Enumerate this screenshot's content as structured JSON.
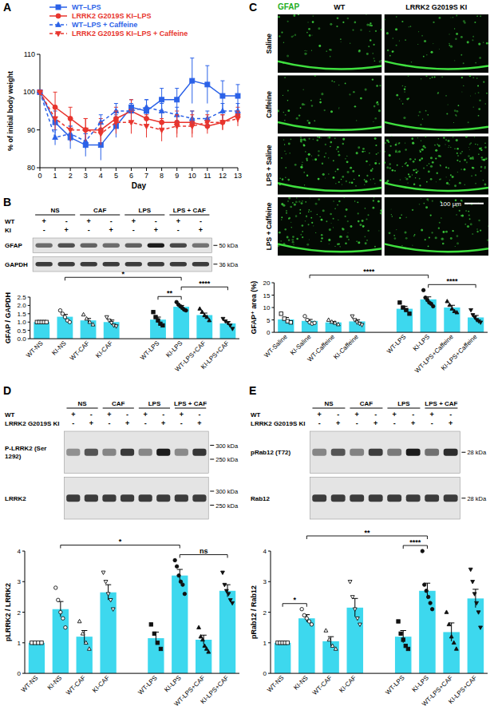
{
  "chart_data": [
    {
      "type": "line",
      "x_label": "Day",
      "y_label": "% of initial body weight",
      "x": [
        0,
        1,
        2,
        3,
        4,
        5,
        6,
        7,
        8,
        9,
        10,
        11,
        12,
        13
      ],
      "xlim": [
        0,
        13
      ],
      "xticks": [
        0,
        1,
        2,
        3,
        4,
        5,
        6,
        7,
        8,
        9,
        10,
        11,
        12,
        13
      ],
      "ylim": [
        80,
        110
      ],
      "yticks": [
        80,
        90,
        100,
        110
      ],
      "legend": "top",
      "series": [
        {
          "name": "WT–LPS",
          "color": "#2b62e8",
          "marker": "square",
          "line_style": "solid",
          "values": [
            100,
            92,
            88,
            86,
            86,
            91,
            96,
            95,
            98,
            98,
            103,
            102,
            99,
            99
          ],
          "errors": [
            0,
            3,
            3,
            3,
            4,
            3,
            2,
            3,
            3,
            3,
            6,
            5,
            4,
            3
          ]
        },
        {
          "name": "LRRK2 G2019S KI–LPS",
          "color": "#e8352e",
          "marker": "circle",
          "line_style": "solid",
          "values": [
            100,
            96,
            93,
            90,
            90,
            93,
            95,
            93,
            92,
            92,
            92,
            91,
            92,
            94
          ],
          "errors": [
            0,
            4,
            3,
            3,
            3,
            3,
            3,
            3,
            3,
            3,
            3,
            2,
            2,
            2
          ]
        },
        {
          "name": "WT–LPS + Caffeine",
          "color": "#2b62e8",
          "marker": "triangle",
          "line_style": "dashed",
          "values": [
            100,
            88,
            89,
            87,
            92,
            95,
            95,
            96,
            95,
            94,
            93,
            93,
            95,
            95
          ],
          "errors": [
            0,
            2,
            2,
            2,
            2,
            2,
            2,
            2,
            2,
            2,
            2,
            2,
            2,
            2
          ]
        },
        {
          "name": "LRRK2 G2019S KI–LPS + Caffeine",
          "color": "#e8352e",
          "marker": "triangle-down",
          "line_style": "dashed",
          "values": [
            100,
            93,
            90,
            90,
            89,
            92,
            92,
            91,
            90,
            91,
            91,
            92,
            92,
            93
          ],
          "errors": [
            0,
            3,
            3,
            3,
            3,
            3,
            3,
            3,
            3,
            3,
            3,
            2,
            2,
            2
          ]
        }
      ]
    },
    {
      "type": "bar",
      "y_label": "GFAP / GAPDH",
      "color": "#3dd8ee",
      "categories": [
        "WT-NS",
        "KI-NS",
        "WT-CAF",
        "KI-CAF",
        "WT-LPS",
        "KI-LPS",
        "WT-LPS+CAF",
        "KI-LPS+CAF"
      ],
      "values": [
        1.0,
        1.32,
        1.1,
        1.0,
        1.15,
        1.92,
        1.42,
        0.92
      ],
      "errors": [
        0.02,
        0.14,
        0.12,
        0.12,
        0.15,
        0.08,
        0.12,
        0.1
      ],
      "points": [
        [
          1.0,
          1.0,
          1.0,
          1.0,
          1.0
        ],
        [
          1.7,
          1.5,
          1.3,
          1.1,
          1.0
        ],
        [
          1.45,
          1.2,
          1.0,
          0.85
        ],
        [
          1.3,
          1.1,
          0.95,
          0.8,
          0.75
        ],
        [
          1.6,
          1.3,
          1.1,
          0.9,
          0.8
        ],
        [
          2.2,
          2.05,
          1.95,
          1.85,
          1.75,
          1.7
        ],
        [
          1.8,
          1.6,
          1.4,
          1.3,
          1.1
        ],
        [
          1.2,
          1.05,
          0.95,
          0.8,
          0.6
        ]
      ],
      "ylim": [
        0,
        2.5
      ],
      "yticks": [
        {
          "value": 0,
          "label": "0.0"
        },
        {
          "value": 0.5,
          "label": "0.5"
        },
        {
          "value": 1,
          "label": "1.0"
        },
        {
          "value": 1.5,
          "label": "1.5"
        },
        {
          "value": 2,
          "label": "2.0"
        },
        {
          "value": 2.5,
          "label": "2.5"
        }
      ],
      "annotations": [
        {
          "text": "*",
          "between": [
            "KI-NS",
            "KI-LPS"
          ]
        },
        {
          "text": "**",
          "between": [
            "WT-LPS",
            "KI-LPS"
          ]
        },
        {
          "text": "****",
          "between": [
            "KI-LPS",
            "KI-LPS+CAF"
          ]
        }
      ]
    },
    {
      "type": "bar",
      "y_label": "GFAP⁺ area (%)",
      "color": "#3dd8ee",
      "categories": [
        "WT-Saline",
        "KI-Saline",
        "WT-Caffeine",
        "KI-Caffeine",
        "WT-LPS",
        "KI-LPS",
        "WT-LPS+Caffeine",
        "KI-LPS+Caffeine"
      ],
      "values": [
        5.2,
        4.6,
        4.0,
        4.4,
        9.5,
        13.3,
        10.0,
        6.0
      ],
      "errors": [
        0.8,
        0.6,
        0.4,
        0.7,
        1.0,
        1.0,
        0.9,
        0.8
      ],
      "points": [
        [
          7.5,
          5.5,
          4.5,
          4.0
        ],
        [
          6.5,
          5.0,
          4.0,
          3.5,
          3.8
        ],
        [
          5.0,
          4.2,
          3.8,
          3.2
        ],
        [
          6.5,
          5.0,
          4.0,
          3.5,
          3.0
        ],
        [
          12.0,
          10.0,
          9.0,
          7.5
        ],
        [
          17.0,
          14.0,
          13.0,
          12.0,
          11.5,
          10.5
        ],
        [
          12.5,
          11.0,
          9.5,
          8.5,
          8.0
        ],
        [
          9.0,
          7.0,
          6.0,
          5.0,
          4.5,
          4.0
        ]
      ],
      "ylim": [
        0,
        20
      ],
      "yticks": [
        0,
        5,
        10,
        15,
        20
      ],
      "annotations": [
        {
          "text": "****",
          "between": [
            "KI-Saline",
            "KI-LPS"
          ]
        },
        {
          "text": "****",
          "between": [
            "KI-LPS",
            "KI-LPS+Caffeine"
          ]
        }
      ]
    },
    {
      "type": "bar",
      "y_label": "pLRRK2 / LRRK2",
      "color": "#3dd8ee",
      "categories": [
        "WT-NS",
        "KI-NS",
        "WT-CAF",
        "KI-CAF",
        "WT-LPS",
        "KI-LPS",
        "WT-LPS+CAF",
        "KI-LPS+CAF"
      ],
      "values": [
        1.0,
        2.1,
        1.2,
        2.65,
        1.15,
        3.2,
        1.1,
        2.7
      ],
      "errors": [
        0.02,
        0.25,
        0.2,
        0.25,
        0.2,
        0.2,
        0.15,
        0.2
      ],
      "points": [
        [
          1,
          1,
          1,
          1
        ],
        [
          2.8,
          2.4,
          2.0,
          1.8,
          1.5
        ],
        [
          1.7,
          1.3,
          1.0,
          0.8
        ],
        [
          3.3,
          3.0,
          2.6,
          2.4,
          2.1
        ],
        [
          1.6,
          1.3,
          1.0,
          0.8
        ],
        [
          3.7,
          3.5,
          3.2,
          3.0,
          2.9,
          2.6
        ],
        [
          1.5,
          1.2,
          1.1,
          0.9,
          0.8,
          0.7
        ],
        [
          3.3,
          2.9,
          2.7,
          2.6,
          2.4,
          2.3
        ]
      ],
      "ylim": [
        0,
        4
      ],
      "yticks": [
        0,
        1,
        2,
        3,
        4
      ],
      "annotations": [
        {
          "text": "*",
          "between": [
            "KI-NS",
            "KI-LPS"
          ]
        },
        {
          "text": "ns",
          "between": [
            "KI-LPS",
            "KI-LPS+CAF"
          ]
        }
      ]
    },
    {
      "type": "bar",
      "y_label": "pRab12 / Rab12",
      "color": "#3dd8ee",
      "categories": [
        "WT-NS",
        "KI-NS",
        "WT-CAF",
        "KI-CAF",
        "WT-LPS",
        "KI-LPS",
        "WT-LPS+CAF",
        "KI-LPS+CAF"
      ],
      "values": [
        1.0,
        1.8,
        1.05,
        2.15,
        1.2,
        2.7,
        1.35,
        2.45
      ],
      "errors": [
        0.02,
        0.12,
        0.15,
        0.3,
        0.2,
        0.25,
        0.3,
        0.3
      ],
      "points": [
        [
          1,
          1,
          1,
          1,
          1
        ],
        [
          2.1,
          1.9,
          1.8,
          1.7,
          1.6
        ],
        [
          1.4,
          1.1,
          0.9,
          0.8
        ],
        [
          3.0,
          2.5,
          2.1,
          1.8,
          1.6
        ],
        [
          1.7,
          1.3,
          1.1,
          0.9,
          0.8
        ],
        [
          4.0,
          2.9,
          2.7,
          2.5,
          2.3,
          2.1
        ],
        [
          2.0,
          1.6,
          1.2,
          1.0,
          0.8
        ],
        [
          3.4,
          3.0,
          2.6,
          2.3,
          2.0,
          1.5
        ]
      ],
      "ylim": [
        0,
        4
      ],
      "yticks": [
        0,
        1,
        2,
        3,
        4
      ],
      "annotations": [
        {
          "text": "*",
          "between": [
            "WT-NS",
            "KI-NS"
          ]
        },
        {
          "text": "**",
          "between": [
            "KI-NS",
            "KI-LPS"
          ]
        },
        {
          "text": "****",
          "between": [
            "WT-LPS",
            "KI-LPS"
          ]
        }
      ]
    }
  ],
  "figure": {
    "panel_labels": [
      "A",
      "B",
      "C",
      "D",
      "E"
    ],
    "blots": [
      {
        "groups": [
          "NS",
          "CAF",
          "LPS",
          "LPS + CAF"
        ],
        "rows": [
          {
            "label": "WT",
            "signs": [
              "+",
              "-",
              "+",
              "-",
              "+",
              "-",
              "+",
              "-"
            ]
          },
          {
            "label": "KI",
            "signs": [
              "-",
              "+",
              "-",
              "+",
              "-",
              "+",
              "-",
              "+"
            ]
          }
        ],
        "bands": [
          {
            "label": "GFAP",
            "sizes": [
              "50 kDa"
            ]
          },
          {
            "label": "GAPDH",
            "sizes": [
              "36 kDa"
            ]
          }
        ]
      },
      {
        "groups": [
          "NS",
          "CAF",
          "LPS",
          "LPS + CAF"
        ],
        "rows": [
          {
            "label": "WT",
            "signs": [
              "+",
              "-",
              "+",
              "-",
              "+",
              "-",
              "+",
              "-"
            ]
          },
          {
            "label": "LRRK2 G2019S KI",
            "signs": [
              "-",
              "+",
              "-",
              "+",
              "-",
              "+",
              "-",
              "+"
            ]
          }
        ],
        "bands": [
          {
            "label": "P-LRRK2 (Ser 1292)",
            "sizes": [
              "300 kDa",
              "250 kDa"
            ]
          },
          {
            "label": "LRRK2",
            "sizes": [
              "300 kDa",
              "250 kDa"
            ]
          }
        ]
      },
      {
        "groups": [
          "NS",
          "CAF",
          "LPS",
          "LPS + CAF"
        ],
        "rows": [
          {
            "label": "WT",
            "signs": [
              "+",
              "-",
              "+",
              "-",
              "+",
              "-",
              "+",
              "-"
            ]
          },
          {
            "label": "LRRK2 G2019S KI",
            "signs": [
              "-",
              "+",
              "-",
              "+",
              "-",
              "+",
              "-",
              "+"
            ]
          }
        ],
        "bands": [
          {
            "label": "pRab12 (T72)",
            "sizes": [
              "28 kDa"
            ]
          },
          {
            "label": "Rab12",
            "sizes": [
              "28 kDa"
            ]
          }
        ]
      }
    ],
    "micrographs": {
      "stain": "GFAP",
      "columns": [
        "WT",
        "LRRK2 G2019S KI"
      ],
      "rows": [
        "Saline",
        "Caffeine",
        "LPS + Saline",
        "LPS + Caffeine"
      ],
      "scale_bar": "100 μm"
    }
  }
}
